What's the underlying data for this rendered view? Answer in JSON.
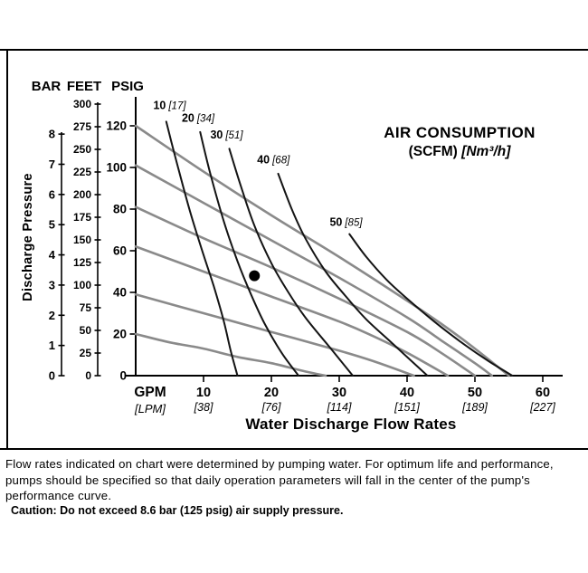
{
  "page": {
    "footer": "Flow rates indicated on chart were determined by pumping water. For optimum life and performance, pumps should be specified so that daily operation parameters will fall in the center of the pump's performance curve.",
    "caution": "Caution: Do not exceed 8.6 bar (125 psig) air supply pressure."
  },
  "chart_data": {
    "type": "line",
    "title": "AIR CONSUMPTION",
    "title_sub_bold": "(SCFM)",
    "title_sub_italic": "[Nm³/h]",
    "xlabel": "Water Discharge Flow Rates",
    "ylabel": "Discharge Pressure",
    "x_unit_primary": "GPM",
    "x_unit_secondary": "[LPM]",
    "y_axis_headers": [
      "BAR",
      "FEET",
      "PSIG"
    ],
    "grid": false,
    "xlim_gpm": [
      0,
      60
    ],
    "ylim_psig": [
      0,
      120
    ],
    "ylim_feet": [
      0,
      300
    ],
    "ylim_bar": [
      0,
      8
    ],
    "psig_ticks": [
      0,
      20,
      40,
      60,
      80,
      100,
      120
    ],
    "feet_ticks": [
      0,
      25,
      50,
      75,
      100,
      125,
      150,
      175,
      200,
      225,
      250,
      275,
      300
    ],
    "bar_ticks": [
      0,
      1,
      2,
      3,
      4,
      5,
      6,
      7,
      8
    ],
    "gpm_ticks": [
      {
        "gpm": "10",
        "lpm": "[38]"
      },
      {
        "gpm": "20",
        "lpm": "[76]"
      },
      {
        "gpm": "30",
        "lpm": "[114]"
      },
      {
        "gpm": "40",
        "lpm": "[151]"
      },
      {
        "gpm": "50",
        "lpm": "[189]"
      },
      {
        "gpm": "60",
        "lpm": "[227]"
      }
    ],
    "pump_curves": [
      {
        "name": "pump-curve-1",
        "points": [
          [
            0,
            120
          ],
          [
            10,
            98
          ],
          [
            20,
            77
          ],
          [
            30,
            57
          ],
          [
            40,
            36
          ],
          [
            45,
            25
          ],
          [
            50,
            13
          ],
          [
            55,
            0
          ]
        ]
      },
      {
        "name": "pump-curve-2",
        "points": [
          [
            0,
            101
          ],
          [
            10,
            83
          ],
          [
            20,
            65
          ],
          [
            30,
            47
          ],
          [
            40,
            28
          ],
          [
            45,
            17
          ],
          [
            50,
            6
          ],
          [
            52.5,
            0
          ]
        ]
      },
      {
        "name": "pump-curve-3",
        "points": [
          [
            0,
            81
          ],
          [
            10,
            66
          ],
          [
            20,
            52
          ],
          [
            30,
            37
          ],
          [
            40,
            21
          ],
          [
            45,
            11
          ],
          [
            50,
            0
          ]
        ]
      },
      {
        "name": "pump-curve-4",
        "points": [
          [
            0,
            62
          ],
          [
            10,
            50
          ],
          [
            20,
            38
          ],
          [
            30,
            26
          ],
          [
            35,
            19
          ],
          [
            40,
            11
          ],
          [
            46,
            0
          ]
        ]
      },
      {
        "name": "pump-curve-5",
        "points": [
          [
            0,
            39
          ],
          [
            10,
            30
          ],
          [
            20,
            21
          ],
          [
            30,
            12
          ],
          [
            35,
            7
          ],
          [
            41,
            0
          ]
        ]
      },
      {
        "name": "pump-curve-6",
        "points": [
          [
            0,
            20
          ],
          [
            5,
            16
          ],
          [
            10,
            13
          ],
          [
            15,
            9
          ],
          [
            20,
            6
          ],
          [
            25,
            2
          ],
          [
            28,
            0
          ]
        ]
      }
    ],
    "air_curves": [
      {
        "scfm": "10",
        "nm3h": "[17]",
        "label_at": [
          5.0,
          128
        ],
        "points": [
          [
            4.5,
            122
          ],
          [
            6,
            103
          ],
          [
            8,
            79
          ],
          [
            10,
            58
          ],
          [
            11.5,
            43
          ],
          [
            13,
            26
          ],
          [
            14,
            12
          ],
          [
            15,
            0
          ]
        ]
      },
      {
        "scfm": "20",
        "nm3h": "[34]",
        "label_at": [
          9.2,
          122
        ],
        "points": [
          [
            9.5,
            117
          ],
          [
            11,
            97
          ],
          [
            13,
            74
          ],
          [
            15,
            55
          ],
          [
            17,
            39
          ],
          [
            19,
            25
          ],
          [
            21.5,
            11
          ],
          [
            24,
            0
          ]
        ]
      },
      {
        "scfm": "30",
        "nm3h": "[51]",
        "label_at": [
          13.4,
          114
        ],
        "points": [
          [
            13.8,
            109
          ],
          [
            15.5,
            91
          ],
          [
            17.5,
            72
          ],
          [
            20,
            54
          ],
          [
            22.5,
            40
          ],
          [
            25,
            28
          ],
          [
            28.5,
            14
          ],
          [
            32,
            0
          ]
        ]
      },
      {
        "scfm": "40",
        "nm3h": "[68]",
        "label_at": [
          20.3,
          102
        ],
        "points": [
          [
            21,
            97
          ],
          [
            23,
            80
          ],
          [
            25,
            66
          ],
          [
            28,
            50
          ],
          [
            31,
            38
          ],
          [
            34,
            27
          ],
          [
            38,
            15
          ],
          [
            43,
            0
          ]
        ]
      },
      {
        "scfm": "50",
        "nm3h": "[85]",
        "label_at": [
          31.0,
          72
        ],
        "points": [
          [
            31.5,
            68
          ],
          [
            34,
            57
          ],
          [
            37,
            46
          ],
          [
            40,
            37
          ],
          [
            44,
            26
          ],
          [
            48,
            16
          ],
          [
            52,
            7
          ],
          [
            55.5,
            0
          ]
        ]
      }
    ],
    "operating_point": {
      "gpm": 17.5,
      "psig": 48
    }
  }
}
